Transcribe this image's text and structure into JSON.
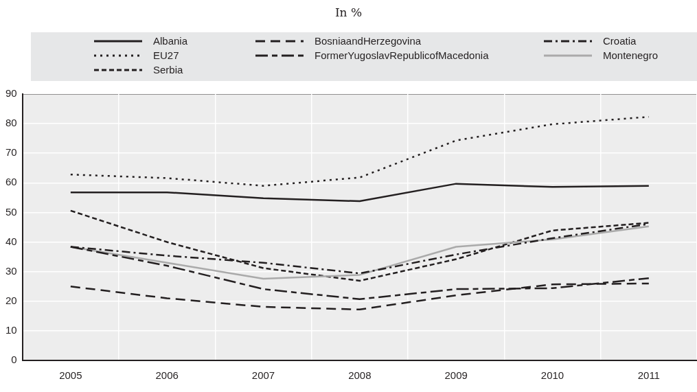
{
  "chart_data": {
    "type": "line",
    "subtitle": "In %",
    "categories": [
      "2005",
      "2006",
      "2007",
      "2008",
      "2009",
      "2010",
      "2011"
    ],
    "series": [
      {
        "name": "Albania",
        "color": "#231f20",
        "line_style": "solid",
        "values": [
          56.8,
          56.8,
          54.8,
          53.8,
          59.7,
          58.6,
          59
        ]
      },
      {
        "name": "BosniaandHerzegovina",
        "color": "#231f20",
        "line_style": "dashed",
        "values": [
          25,
          21,
          18.1,
          17.2,
          22,
          25.7,
          26
        ]
      },
      {
        "name": "Croatia",
        "color": "#231f20",
        "line_style": "dashdot",
        "values": [
          38.4,
          35.4,
          33,
          29.4,
          35.8,
          41.3,
          46.1
        ]
      },
      {
        "name": "EU27",
        "color": "#231f20",
        "line_style": "dotted",
        "values": [
          62.8,
          61.6,
          59,
          61.8,
          74.3,
          79.8,
          82.3
        ]
      },
      {
        "name": "FormerYugoslavRepublicofMacedonia",
        "color": "#231f20",
        "line_style": "longdashdot",
        "values": [
          38.4,
          32,
          24.1,
          20.7,
          24.1,
          24.4,
          27.8
        ]
      },
      {
        "name": "Montenegro",
        "color": "#aaaaaa",
        "line_style": "solid",
        "values": [
          38.4,
          33,
          27.6,
          28.9,
          38.4,
          40.9,
          45.3
        ]
      },
      {
        "name": "Serbia",
        "color": "#231f20",
        "line_style": "shortdashed",
        "values": [
          50.6,
          40,
          31.2,
          26.9,
          34.2,
          43.9,
          46.5
        ]
      }
    ],
    "ylim": [
      0,
      90
    ],
    "yticks": [
      0,
      10,
      20,
      30,
      40,
      50,
      60,
      70,
      80,
      90
    ],
    "grid": true,
    "legend": "top",
    "marker": "none"
  }
}
